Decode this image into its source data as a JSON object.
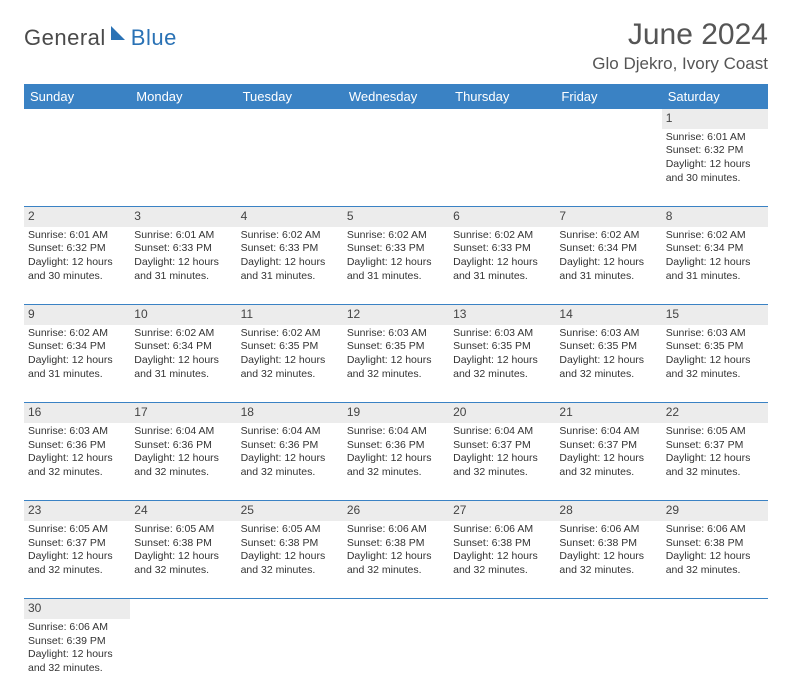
{
  "logo": {
    "text1": "General",
    "text2": "Blue",
    "shape_color": "#2a72b5"
  },
  "header": {
    "month_title": "June 2024",
    "location": "Glo Djekro, Ivory Coast"
  },
  "colors": {
    "header_bg": "#3a82c4",
    "header_fg": "#ffffff",
    "daynum_bg": "#ececec",
    "divider": "#3a82c4",
    "text": "#333333"
  },
  "weekdays": [
    "Sunday",
    "Monday",
    "Tuesday",
    "Wednesday",
    "Thursday",
    "Friday",
    "Saturday"
  ],
  "weeks": [
    {
      "nums": [
        "",
        "",
        "",
        "",
        "",
        "",
        "1"
      ],
      "sunrise": [
        "",
        "",
        "",
        "",
        "",
        "",
        "Sunrise: 6:01 AM"
      ],
      "sunset": [
        "",
        "",
        "",
        "",
        "",
        "",
        "Sunset: 6:32 PM"
      ],
      "day1": [
        "",
        "",
        "",
        "",
        "",
        "",
        "Daylight: 12 hours"
      ],
      "day2": [
        "",
        "",
        "",
        "",
        "",
        "",
        "and 30 minutes."
      ]
    },
    {
      "nums": [
        "2",
        "3",
        "4",
        "5",
        "6",
        "7",
        "8"
      ],
      "sunrise": [
        "Sunrise: 6:01 AM",
        "Sunrise: 6:01 AM",
        "Sunrise: 6:02 AM",
        "Sunrise: 6:02 AM",
        "Sunrise: 6:02 AM",
        "Sunrise: 6:02 AM",
        "Sunrise: 6:02 AM"
      ],
      "sunset": [
        "Sunset: 6:32 PM",
        "Sunset: 6:33 PM",
        "Sunset: 6:33 PM",
        "Sunset: 6:33 PM",
        "Sunset: 6:33 PM",
        "Sunset: 6:34 PM",
        "Sunset: 6:34 PM"
      ],
      "day1": [
        "Daylight: 12 hours",
        "Daylight: 12 hours",
        "Daylight: 12 hours",
        "Daylight: 12 hours",
        "Daylight: 12 hours",
        "Daylight: 12 hours",
        "Daylight: 12 hours"
      ],
      "day2": [
        "and 30 minutes.",
        "and 31 minutes.",
        "and 31 minutes.",
        "and 31 minutes.",
        "and 31 minutes.",
        "and 31 minutes.",
        "and 31 minutes."
      ]
    },
    {
      "nums": [
        "9",
        "10",
        "11",
        "12",
        "13",
        "14",
        "15"
      ],
      "sunrise": [
        "Sunrise: 6:02 AM",
        "Sunrise: 6:02 AM",
        "Sunrise: 6:02 AM",
        "Sunrise: 6:03 AM",
        "Sunrise: 6:03 AM",
        "Sunrise: 6:03 AM",
        "Sunrise: 6:03 AM"
      ],
      "sunset": [
        "Sunset: 6:34 PM",
        "Sunset: 6:34 PM",
        "Sunset: 6:35 PM",
        "Sunset: 6:35 PM",
        "Sunset: 6:35 PM",
        "Sunset: 6:35 PM",
        "Sunset: 6:35 PM"
      ],
      "day1": [
        "Daylight: 12 hours",
        "Daylight: 12 hours",
        "Daylight: 12 hours",
        "Daylight: 12 hours",
        "Daylight: 12 hours",
        "Daylight: 12 hours",
        "Daylight: 12 hours"
      ],
      "day2": [
        "and 31 minutes.",
        "and 31 minutes.",
        "and 32 minutes.",
        "and 32 minutes.",
        "and 32 minutes.",
        "and 32 minutes.",
        "and 32 minutes."
      ]
    },
    {
      "nums": [
        "16",
        "17",
        "18",
        "19",
        "20",
        "21",
        "22"
      ],
      "sunrise": [
        "Sunrise: 6:03 AM",
        "Sunrise: 6:04 AM",
        "Sunrise: 6:04 AM",
        "Sunrise: 6:04 AM",
        "Sunrise: 6:04 AM",
        "Sunrise: 6:04 AM",
        "Sunrise: 6:05 AM"
      ],
      "sunset": [
        "Sunset: 6:36 PM",
        "Sunset: 6:36 PM",
        "Sunset: 6:36 PM",
        "Sunset: 6:36 PM",
        "Sunset: 6:37 PM",
        "Sunset: 6:37 PM",
        "Sunset: 6:37 PM"
      ],
      "day1": [
        "Daylight: 12 hours",
        "Daylight: 12 hours",
        "Daylight: 12 hours",
        "Daylight: 12 hours",
        "Daylight: 12 hours",
        "Daylight: 12 hours",
        "Daylight: 12 hours"
      ],
      "day2": [
        "and 32 minutes.",
        "and 32 minutes.",
        "and 32 minutes.",
        "and 32 minutes.",
        "and 32 minutes.",
        "and 32 minutes.",
        "and 32 minutes."
      ]
    },
    {
      "nums": [
        "23",
        "24",
        "25",
        "26",
        "27",
        "28",
        "29"
      ],
      "sunrise": [
        "Sunrise: 6:05 AM",
        "Sunrise: 6:05 AM",
        "Sunrise: 6:05 AM",
        "Sunrise: 6:06 AM",
        "Sunrise: 6:06 AM",
        "Sunrise: 6:06 AM",
        "Sunrise: 6:06 AM"
      ],
      "sunset": [
        "Sunset: 6:37 PM",
        "Sunset: 6:38 PM",
        "Sunset: 6:38 PM",
        "Sunset: 6:38 PM",
        "Sunset: 6:38 PM",
        "Sunset: 6:38 PM",
        "Sunset: 6:38 PM"
      ],
      "day1": [
        "Daylight: 12 hours",
        "Daylight: 12 hours",
        "Daylight: 12 hours",
        "Daylight: 12 hours",
        "Daylight: 12 hours",
        "Daylight: 12 hours",
        "Daylight: 12 hours"
      ],
      "day2": [
        "and 32 minutes.",
        "and 32 minutes.",
        "and 32 minutes.",
        "and 32 minutes.",
        "and 32 minutes.",
        "and 32 minutes.",
        "and 32 minutes."
      ]
    },
    {
      "nums": [
        "30",
        "",
        "",
        "",
        "",
        "",
        ""
      ],
      "sunrise": [
        "Sunrise: 6:06 AM",
        "",
        "",
        "",
        "",
        "",
        ""
      ],
      "sunset": [
        "Sunset: 6:39 PM",
        "",
        "",
        "",
        "",
        "",
        ""
      ],
      "day1": [
        "Daylight: 12 hours",
        "",
        "",
        "",
        "",
        "",
        ""
      ],
      "day2": [
        "and 32 minutes.",
        "",
        "",
        "",
        "",
        "",
        ""
      ]
    }
  ]
}
